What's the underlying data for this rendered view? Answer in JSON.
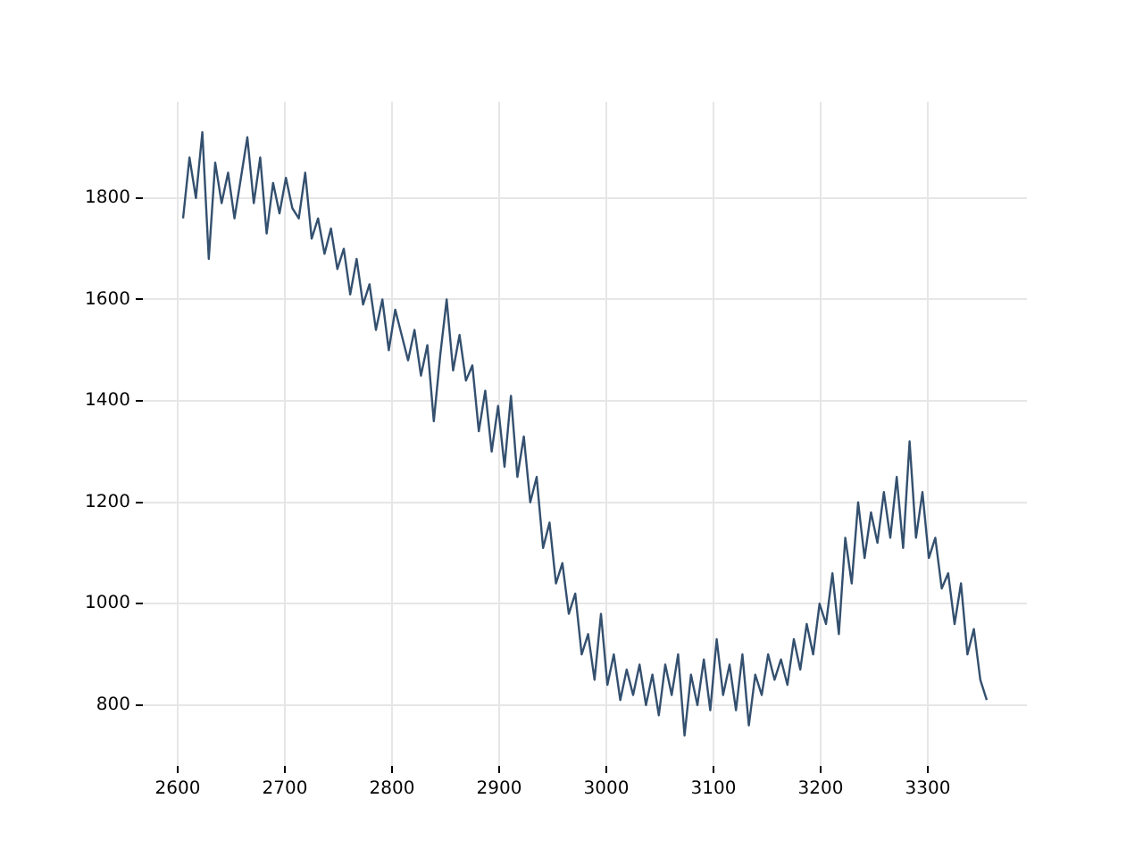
{
  "chart_data": {
    "type": "line",
    "x": [
      2605,
      2611,
      2617,
      2623,
      2629,
      2635,
      2641,
      2647,
      2653,
      2659,
      2665,
      2671,
      2677,
      2683,
      2689,
      2695,
      2701,
      2707,
      2713,
      2719,
      2725,
      2731,
      2737,
      2743,
      2749,
      2755,
      2761,
      2767,
      2773,
      2779,
      2785,
      2791,
      2797,
      2803,
      2809,
      2815,
      2821,
      2827,
      2833,
      2839,
      2845,
      2851,
      2857,
      2863,
      2869,
      2875,
      2881,
      2887,
      2893,
      2899,
      2905,
      2911,
      2917,
      2923,
      2929,
      2935,
      2941,
      2947,
      2953,
      2959,
      2965,
      2971,
      2977,
      2983,
      2989,
      2995,
      3001,
      3007,
      3013,
      3019,
      3025,
      3031,
      3037,
      3043,
      3049,
      3055,
      3061,
      3067,
      3073,
      3079,
      3085,
      3091,
      3097,
      3103,
      3109,
      3115,
      3121,
      3127,
      3133,
      3139,
      3145,
      3151,
      3157,
      3163,
      3169,
      3175,
      3181,
      3187,
      3193,
      3199,
      3205,
      3211,
      3217,
      3223,
      3229,
      3235,
      3241,
      3247,
      3253,
      3259,
      3265,
      3271,
      3277,
      3283,
      3289,
      3295,
      3301,
      3307,
      3313,
      3319,
      3325,
      3331,
      3337,
      3343,
      3349,
      3355
    ],
    "series": [
      {
        "color": "#34506f",
        "values": [
          1760,
          1880,
          1800,
          1930,
          1680,
          1870,
          1790,
          1850,
          1760,
          1840,
          1920,
          1790,
          1880,
          1730,
          1830,
          1770,
          1840,
          1780,
          1760,
          1850,
          1720,
          1760,
          1690,
          1740,
          1660,
          1700,
          1610,
          1680,
          1590,
          1630,
          1540,
          1600,
          1500,
          1580,
          1530,
          1480,
          1540,
          1450,
          1510,
          1360,
          1490,
          1600,
          1460,
          1530,
          1440,
          1470,
          1340,
          1420,
          1300,
          1390,
          1270,
          1410,
          1250,
          1330,
          1200,
          1250,
          1110,
          1160,
          1040,
          1080,
          980,
          1020,
          900,
          940,
          850,
          980,
          840,
          900,
          810,
          870,
          820,
          880,
          800,
          860,
          780,
          880,
          820,
          900,
          740,
          860,
          800,
          890,
          790,
          930,
          820,
          880,
          790,
          900,
          760,
          860,
          820,
          900,
          850,
          890,
          840,
          930,
          870,
          960,
          900,
          1000,
          960,
          1060,
          940,
          1130,
          1040,
          1200,
          1090,
          1180,
          1120,
          1220,
          1130,
          1250,
          1110,
          1320,
          1130,
          1220,
          1090,
          1130,
          1030,
          1060,
          960,
          1040,
          900,
          950,
          850,
          810
        ]
      }
    ],
    "xlim": [
      2567.5,
      3392.5
    ],
    "ylim": [
      680,
      1990
    ],
    "xticks": [
      2600,
      2700,
      2800,
      2900,
      3000,
      3100,
      3200,
      3300
    ],
    "yticks": [
      800,
      1000,
      1200,
      1400,
      1600,
      1800
    ],
    "grid": true,
    "legend": false,
    "marker": "none",
    "line_style": "solid"
  }
}
